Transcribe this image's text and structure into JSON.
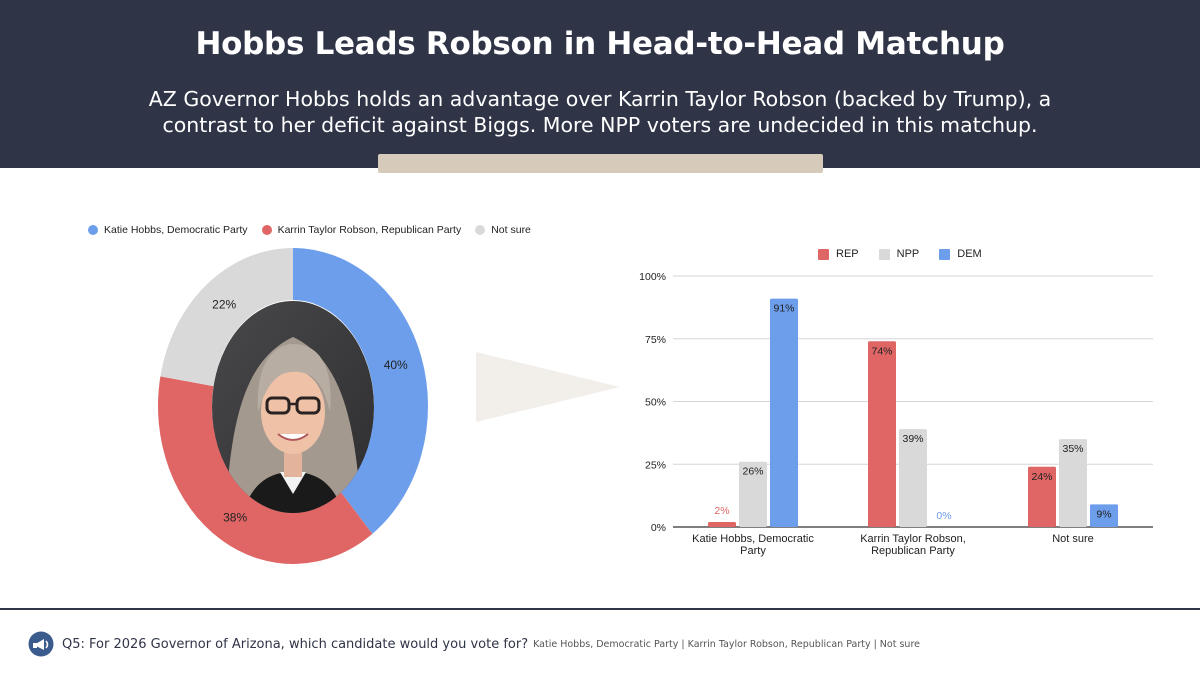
{
  "header": {
    "title": "Hobbs Leads Robson in Head-to-Head Matchup",
    "subtitle": "AZ Governor Hobbs holds an advantage over Karrin Taylor Robson (backed by Trump), a contrast to her deficit against Biggs. More NPP voters are undecided in this matchup."
  },
  "footer": {
    "question": "Q5: For 2026 Governor of Arizona, which candidate would you vote for?",
    "choices": "Katie Hobbs, Democratic Party | Karrin Taylor Robson, Republican Party | Not sure"
  },
  "colors": {
    "dem": "#6d9eeb",
    "rep": "#e06666",
    "npp": "#d9d9d9",
    "header_bg": "#2f3447",
    "accent": "#d6cbbb"
  },
  "chart_data": [
    {
      "type": "pie",
      "variant": "donut",
      "legend_position": "top",
      "labels": [
        "Katie Hobbs, Democratic Party",
        "Karrin Taylor Robson, Republican Party",
        "Not sure"
      ],
      "values": [
        40,
        38,
        22
      ],
      "value_labels": [
        "40%",
        "38%",
        "22%"
      ],
      "colors": [
        "#6d9eeb",
        "#e06666",
        "#d9d9d9"
      ],
      "center_image": "photo of Katie Hobbs"
    },
    {
      "type": "bar",
      "legend_position": "top",
      "categories": [
        "Katie Hobbs, Democratic Party",
        "Karrin Taylor Robson, Republican Party",
        "Not sure"
      ],
      "category_lines": [
        [
          "Katie Hobbs, Democratic",
          "Party"
        ],
        [
          "Karrin Taylor Robson,",
          "Republican Party"
        ],
        [
          "Not sure"
        ]
      ],
      "series": [
        {
          "name": "REP",
          "color": "#e06666",
          "values": [
            2,
            74,
            24
          ],
          "labels": [
            "2%",
            "74%",
            "24%"
          ]
        },
        {
          "name": "NPP",
          "color": "#d9d9d9",
          "values": [
            26,
            39,
            35
          ],
          "labels": [
            "26%",
            "39%",
            "35%"
          ]
        },
        {
          "name": "DEM",
          "color": "#6d9eeb",
          "values": [
            91,
            0,
            9
          ],
          "labels": [
            "91%",
            "0%",
            "9%"
          ]
        }
      ],
      "ylim": [
        0,
        100
      ],
      "yticks": [
        0,
        25,
        50,
        75,
        100
      ],
      "ytick_labels": [
        "0%",
        "25%",
        "50%",
        "75%",
        "100%"
      ],
      "grid": true
    }
  ]
}
